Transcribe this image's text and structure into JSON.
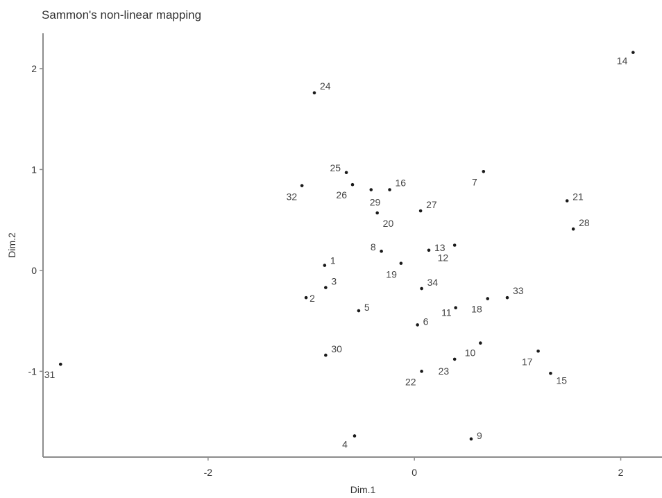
{
  "chart_data": {
    "type": "scatter",
    "title": "Sammon's non-linear mapping",
    "xlabel": "Dim.1",
    "ylabel": "Dim.2",
    "xlim": [
      -3.6,
      2.4
    ],
    "ylim": [
      -1.85,
      2.35
    ],
    "xticks": [
      -2,
      0,
      2
    ],
    "yticks": [
      -1,
      0,
      1,
      2
    ],
    "grid": false,
    "legend": "none",
    "points": [
      {
        "label": "1",
        "x": -0.87,
        "y": 0.05
      },
      {
        "label": "2",
        "x": -1.05,
        "y": -0.27
      },
      {
        "label": "3",
        "x": -0.86,
        "y": -0.17
      },
      {
        "label": "4",
        "x": -0.58,
        "y": -1.64
      },
      {
        "label": "5",
        "x": -0.54,
        "y": -0.4
      },
      {
        "label": "6",
        "x": 0.03,
        "y": -0.54
      },
      {
        "label": "7",
        "x": 0.67,
        "y": 0.98
      },
      {
        "label": "8",
        "x": -0.32,
        "y": 0.19
      },
      {
        "label": "9",
        "x": 0.55,
        "y": -1.67
      },
      {
        "label": "10",
        "x": 0.64,
        "y": -0.72
      },
      {
        "label": "11",
        "x": 0.4,
        "y": -0.37
      },
      {
        "label": "12",
        "x": 0.39,
        "y": 0.25
      },
      {
        "label": "13",
        "x": 0.14,
        "y": 0.2
      },
      {
        "label": "14",
        "x": 2.12,
        "y": 2.16
      },
      {
        "label": "15",
        "x": 1.32,
        "y": -1.02
      },
      {
        "label": "16",
        "x": -0.24,
        "y": 0.8
      },
      {
        "label": "17",
        "x": 1.2,
        "y": -0.8
      },
      {
        "label": "18",
        "x": 0.71,
        "y": -0.28
      },
      {
        "label": "19",
        "x": -0.13,
        "y": 0.07
      },
      {
        "label": "20",
        "x": -0.36,
        "y": 0.57
      },
      {
        "label": "21",
        "x": 1.48,
        "y": 0.69
      },
      {
        "label": "22",
        "x": 0.07,
        "y": -1.0
      },
      {
        "label": "23",
        "x": 0.39,
        "y": -0.88
      },
      {
        "label": "24",
        "x": -0.97,
        "y": 1.76
      },
      {
        "label": "25",
        "x": -0.66,
        "y": 0.97
      },
      {
        "label": "26",
        "x": -0.6,
        "y": 0.85
      },
      {
        "label": "27",
        "x": 0.06,
        "y": 0.59
      },
      {
        "label": "28",
        "x": 1.54,
        "y": 0.41
      },
      {
        "label": "29",
        "x": -0.42,
        "y": 0.8
      },
      {
        "label": "30",
        "x": -0.86,
        "y": -0.84
      },
      {
        "label": "31",
        "x": -3.43,
        "y": -0.93
      },
      {
        "label": "32",
        "x": -1.09,
        "y": 0.84
      },
      {
        "label": "33",
        "x": 0.9,
        "y": -0.27
      },
      {
        "label": "34",
        "x": 0.07,
        "y": -0.18
      }
    ]
  }
}
